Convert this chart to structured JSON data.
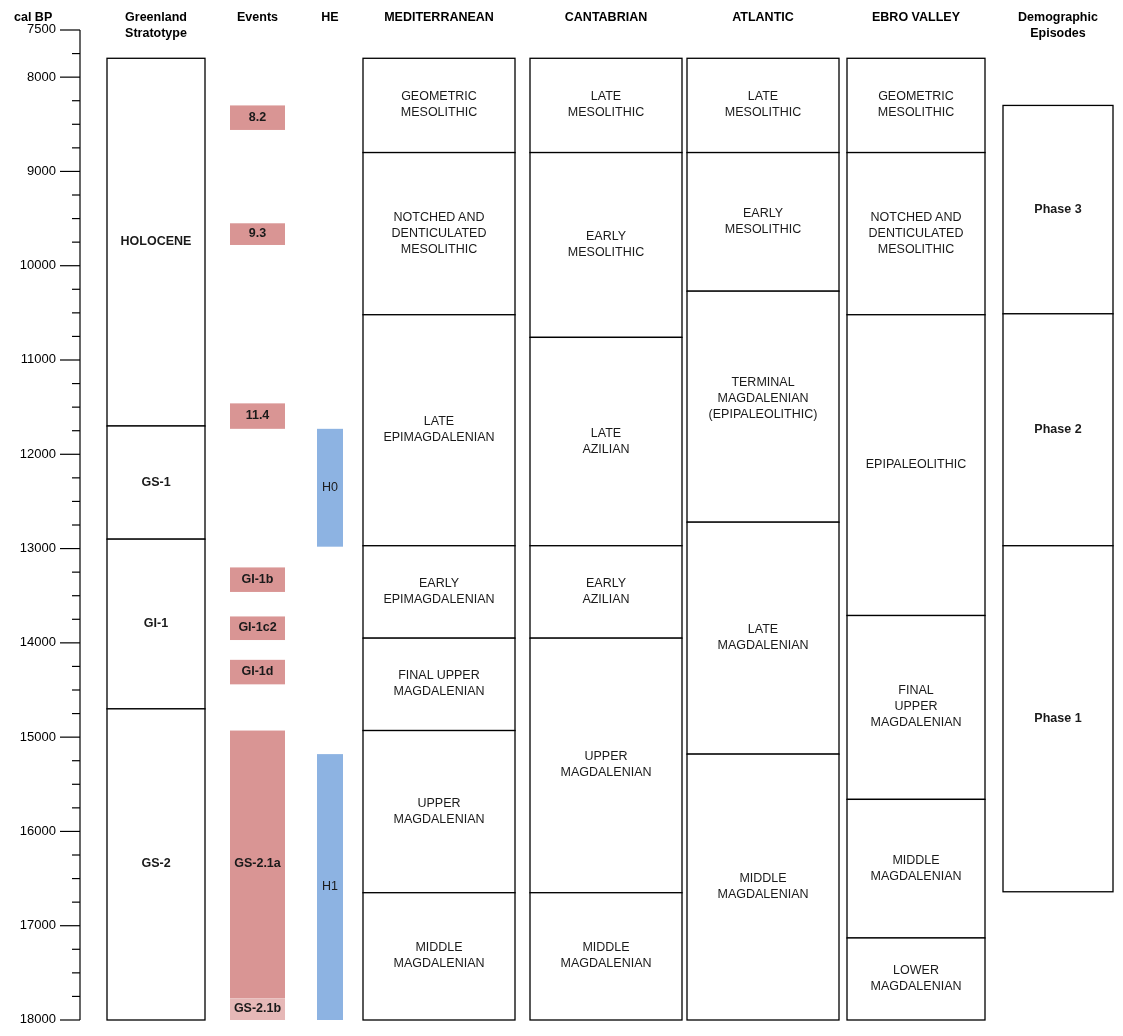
{
  "chart_data": {
    "type": "bar",
    "ylabel": "cal BP",
    "categories": [
      "Greenland\nStratotype",
      "Events",
      "HE",
      "MEDITERRANEAN",
      "CANTABRIAN",
      "ATLANTIC",
      "EBRO VALLEY",
      "Demographic\nEpisodes"
    ],
    "ylim": [
      18000,
      7500
    ],
    "annotations": [
      "8.2",
      "9.3",
      "11.4"
    ],
    "yticks": [
      7500,
      {
        "value": 7750,
        "label": null
      },
      8000,
      {
        "value": 8250,
        "label": null
      },
      {
        "value": 8500,
        "label": null
      },
      {
        "value": 8750,
        "label": null
      },
      9000,
      {
        "value": 9250,
        "label": null
      },
      {
        "value": 9500,
        "label": null
      },
      {
        "value": 9750,
        "label": null
      },
      10000,
      {
        "value": 10250,
        "label": null
      },
      {
        "value": 10500,
        "label": null
      },
      {
        "value": 10750,
        "label": null
      },
      11000,
      {
        "value": 11250,
        "label": null
      },
      {
        "value": 11500,
        "label": null
      },
      {
        "value": 11750,
        "label": null
      },
      12000,
      {
        "value": 12250,
        "label": null
      },
      {
        "value": 12500,
        "label": null
      },
      {
        "value": 12750,
        "label": null
      },
      13000,
      {
        "value": 13250,
        "label": null
      },
      {
        "value": 13500,
        "label": null
      },
      {
        "value": 13750,
        "label": null
      },
      14000,
      {
        "value": 14250,
        "label": null
      },
      {
        "value": 14500,
        "label": null
      },
      {
        "value": 14750,
        "label": null
      },
      15000,
      {
        "value": 15250,
        "label": null
      },
      {
        "value": 15500,
        "label": null
      },
      {
        "value": 15750,
        "label": null
      },
      16000,
      {
        "value": 16250,
        "label": null
      },
      {
        "value": 16500,
        "label": null
      },
      {
        "value": 16750,
        "label": null
      },
      17000,
      {
        "value": 17250,
        "label": null
      },
      {
        "value": 17500,
        "label": null
      },
      {
        "value": 17750,
        "label": null
      },
      18000
    ],
    "series": [
      {
        "base": [
          7800,
          8300,
          11730,
          7800,
          7800,
          7800,
          7800,
          8300
        ],
        "values": [
          3900,
          260,
          1250,
          1000,
          1000,
          1000,
          1000,
          2210
        ],
        "colors": [
          "#ffffff",
          "#d99594",
          "#8db3e2",
          "#ffffff",
          "#ffffff",
          "#ffffff",
          "#ffffff",
          "#ffffff"
        ],
        "value_labels": [
          "HOLOCENE",
          null,
          "H0",
          "GEOMETRIC\nMESOLITHIC",
          "LATE\nMESOLITHIC",
          "LATE\nMESOLITHIC",
          "GEOMETRIC\nMESOLITHIC",
          "Phase 3"
        ]
      },
      {
        "base": [
          11700,
          9550,
          15180,
          8800,
          8800,
          8800,
          8800,
          10510
        ],
        "values": [
          1200,
          230,
          2820,
          1720,
          1960,
          1470,
          1720,
          2460
        ],
        "colors": [
          "#ffffff",
          "#d99594",
          "#8db3e2",
          "#ffffff",
          "#ffffff",
          "#ffffff",
          "#ffffff",
          "#ffffff"
        ],
        "value_labels": [
          "GS-1",
          null,
          "H1",
          "NOTCHED AND\nDENTICULATED\nMESOLITHIC",
          "EARLY\nMESOLITHIC",
          "EARLY\nMESOLITHIC",
          "NOTCHED AND\nDENTICULATED\nMESOLITHIC",
          "Phase 2"
        ]
      },
      {
        "base": [
          12900,
          11460,
          null,
          10520,
          10760,
          10270,
          10520,
          12970
        ],
        "values": [
          1800,
          270,
          null,
          2450,
          2210,
          2450,
          3190,
          3670
        ],
        "colors": [
          "#ffffff",
          "#d99594",
          null,
          "#ffffff",
          "#ffffff",
          "#ffffff",
          "#ffffff",
          "#ffffff"
        ],
        "value_labels": [
          "GI-1",
          null,
          null,
          "LATE\nEPIMAGDALENIAN",
          "LATE\nAZILIAN",
          "TERMINAL\nMAGDALENIAN\n\n(EPIPALEOLITHIC)",
          "EPIPALEOLITHIC",
          "Phase 1"
        ]
      },
      {
        "base": [
          14700,
          13200,
          null,
          12970,
          12970,
          12720,
          13710,
          null
        ],
        "values": [
          3300,
          260,
          null,
          980,
          980,
          2460,
          1950,
          null
        ],
        "colors": [
          "#ffffff",
          "#d99594",
          null,
          "#ffffff",
          "#ffffff",
          "#ffffff",
          "#ffffff",
          null
        ],
        "value_labels": [
          "GS-2",
          "GI-1b",
          null,
          "EARLY\nEPIMAGDALENIAN",
          "EARLY\nAZILIAN",
          "LATE\nMAGDALENIAN",
          "FINAL\nUPPER\nMAGDALENIAN",
          null
        ]
      },
      {
        "base": [
          null,
          13720,
          null,
          13950,
          13950,
          15180,
          15660,
          null
        ],
        "values": [
          null,
          250,
          null,
          980,
          2700,
          2820,
          1470,
          null
        ],
        "colors": [
          null,
          "#d99594",
          null,
          "#ffffff",
          "#ffffff",
          "#ffffff",
          "#ffffff",
          null
        ],
        "value_labels": [
          null,
          "GI-1c2",
          null,
          "FINAL UPPER\nMAGDALENIAN",
          "UPPER\nMAGDALENIAN",
          "MIDDLE\nMAGDALENIAN",
          "MIDDLE\nMAGDALENIAN",
          null
        ]
      },
      {
        "base": [
          null,
          14180,
          null,
          14930,
          16650,
          null,
          17130,
          null
        ],
        "values": [
          null,
          260,
          null,
          1720,
          1350,
          null,
          870,
          null
        ],
        "colors": [
          null,
          "#d99594",
          null,
          "#ffffff",
          "#ffffff",
          null,
          "#ffffff",
          null
        ],
        "value_labels": [
          null,
          "GI-1d",
          null,
          "UPPER\nMAGDALENIAN",
          "MIDDLE\nMAGDALENIAN",
          null,
          "LOWER\nMAGDALENIAN",
          null
        ]
      },
      {
        "base": [
          null,
          14930,
          null,
          16650,
          null,
          null,
          null,
          null
        ],
        "values": [
          null,
          2840,
          null,
          1350,
          null,
          null,
          null,
          null
        ],
        "colors": [
          null,
          "#d99594",
          null,
          "#ffffff",
          null,
          null,
          null,
          null
        ],
        "value_labels": [
          null,
          "GS-2.1a",
          null,
          "MIDDLE\nMAGDALENIAN",
          null,
          null,
          null,
          null
        ]
      },
      {
        "base": [
          null,
          17770,
          null,
          null,
          null,
          null,
          null,
          null
        ],
        "values": [
          null,
          230,
          null,
          null,
          null,
          null,
          null,
          null
        ],
        "colors": [
          null,
          "#e6b8b7",
          null,
          null,
          null,
          null,
          null,
          null
        ],
        "value_labels": [
          null,
          "GS-2.1b",
          null,
          null,
          null,
          null,
          null,
          null
        ]
      }
    ]
  }
}
